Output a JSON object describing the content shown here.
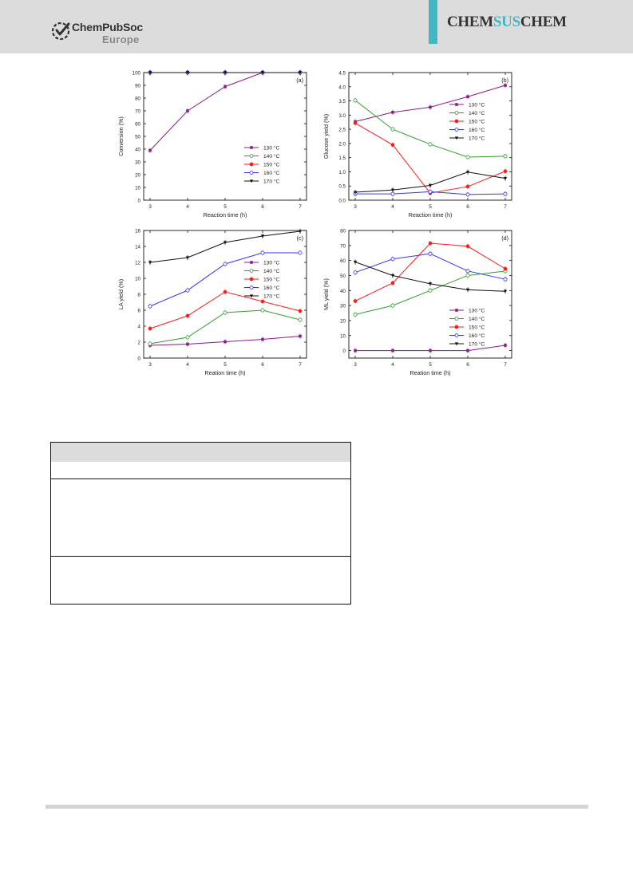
{
  "header": {
    "publisher_logo": "ChemPubSoc Europe",
    "publisher_name": "ChemPubSoc",
    "publisher_sub": "Europe",
    "journal": {
      "part1": "CHEM",
      "part2": "SUS",
      "part3": "CHEM"
    },
    "colors": {
      "band": "#dcdcdc",
      "accent": "#3fb8c4"
    }
  },
  "legend_labels": [
    "130 °C",
    "140 °C",
    "150 °C",
    "160 °C",
    "170 °C"
  ],
  "series_colors": [
    "#8b1a8b",
    "#2ea02e",
    "#ff1a1a",
    "#3333ff",
    "#111111"
  ],
  "chart_data": [
    {
      "type": "line",
      "panel_label": "(a)",
      "xlabel": "Reaction time (h)",
      "ylabel": "Conversion (%)",
      "x": [
        3,
        4,
        5,
        6,
        7
      ],
      "xlim": [
        3,
        7
      ],
      "ylim": [
        0,
        100
      ],
      "yticks": [
        0,
        10,
        20,
        30,
        40,
        50,
        60,
        70,
        80,
        90,
        100
      ],
      "legend_position": "lower-right",
      "series": [
        {
          "name": "130 °C",
          "values": [
            39,
            70,
            89,
            100,
            100
          ]
        },
        {
          "name": "140 °C",
          "values": [
            100,
            100,
            100,
            100,
            100
          ]
        },
        {
          "name": "150 °C",
          "values": [
            100,
            100,
            100,
            100,
            100
          ]
        },
        {
          "name": "160 °C",
          "values": [
            100,
            100,
            100,
            100,
            100
          ]
        },
        {
          "name": "170 °C",
          "values": [
            100,
            100,
            100,
            100,
            100
          ]
        }
      ]
    },
    {
      "type": "line",
      "panel_label": "(b)",
      "xlabel": "Reaction time (h)",
      "ylabel": "Glucose yield (%)",
      "x": [
        3,
        4,
        5,
        6,
        7
      ],
      "xlim": [
        3,
        7
      ],
      "ylim": [
        0,
        4.5
      ],
      "yticks": [
        "0.0",
        "0.5",
        "1.0",
        "1.5",
        "2.0",
        "2.5",
        "3.0",
        "3.5",
        "4.0",
        "4.5"
      ],
      "legend_position": "right",
      "series": [
        {
          "name": "130 °C",
          "values": [
            2.77,
            3.1,
            3.28,
            3.65,
            4.05
          ]
        },
        {
          "name": "140 °C",
          "values": [
            3.52,
            2.5,
            1.97,
            1.52,
            1.55
          ]
        },
        {
          "name": "150 °C",
          "values": [
            2.72,
            1.95,
            0.25,
            0.48,
            1.02
          ]
        },
        {
          "name": "160 °C",
          "values": [
            0.22,
            0.22,
            0.3,
            0.2,
            0.22
          ]
        },
        {
          "name": "170 °C",
          "values": [
            0.28,
            0.36,
            0.52,
            0.99,
            0.77
          ]
        }
      ]
    },
    {
      "type": "line",
      "panel_label": "(c)",
      "xlabel": "Reation time (h)",
      "ylabel": "LA yield (%)",
      "x": [
        3,
        4,
        5,
        6,
        7
      ],
      "xlim": [
        3,
        7
      ],
      "ylim": [
        0,
        16
      ],
      "yticks": [
        0,
        2,
        4,
        6,
        8,
        10,
        12,
        14,
        16
      ],
      "legend_position": "right",
      "series": [
        {
          "name": "130 °C",
          "values": [
            1.6,
            1.75,
            2.05,
            2.35,
            2.75
          ]
        },
        {
          "name": "140 °C",
          "values": [
            1.8,
            2.6,
            5.7,
            6.0,
            4.8
          ]
        },
        {
          "name": "150 °C",
          "values": [
            3.7,
            5.3,
            8.3,
            7.1,
            5.9
          ]
        },
        {
          "name": "160 °C",
          "values": [
            6.5,
            8.5,
            11.8,
            13.2,
            13.2
          ]
        },
        {
          "name": "170 °C",
          "values": [
            12.0,
            12.6,
            14.5,
            15.3,
            15.9
          ]
        }
      ]
    },
    {
      "type": "line",
      "panel_label": "(d)",
      "xlabel": "Reation time (h)",
      "ylabel": "ML yield (%)",
      "x": [
        3,
        4,
        5,
        6,
        7
      ],
      "xlim": [
        3,
        7
      ],
      "ylim": [
        -5,
        80
      ],
      "yticks": [
        0,
        10,
        20,
        30,
        40,
        50,
        60,
        70,
        80
      ],
      "legend_position": "lower-right",
      "series": [
        {
          "name": "130 °C",
          "values": [
            0,
            0,
            0,
            0,
            3.5
          ]
        },
        {
          "name": "140 °C",
          "values": [
            24,
            30,
            40,
            50,
            53
          ]
        },
        {
          "name": "150 °C",
          "values": [
            33,
            45,
            71.5,
            69.5,
            54.5
          ]
        },
        {
          "name": "160 °C",
          "values": [
            52,
            61,
            64.5,
            53,
            47.5
          ]
        },
        {
          "name": "170 °C",
          "values": [
            59,
            50,
            44.5,
            40.5,
            39.5
          ]
        }
      ]
    }
  ]
}
